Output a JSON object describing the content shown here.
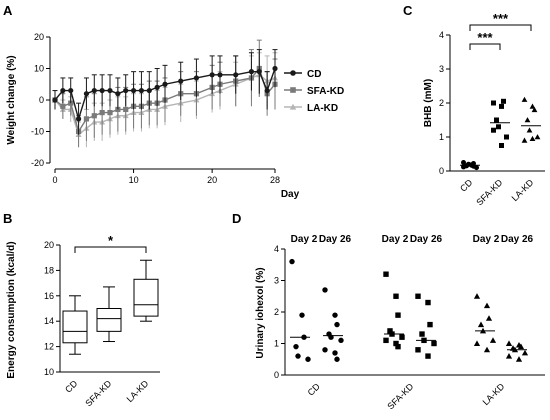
{
  "chart_data": [
    {
      "panel": "A",
      "type": "line",
      "xlabel": "Day",
      "ylabel": "Weight change (%)",
      "xlim": [
        0,
        28
      ],
      "ylim": [
        -20,
        20
      ],
      "x_ticks": [
        0,
        10,
        20,
        28
      ],
      "y_ticks": [
        -20,
        -10,
        0,
        10,
        20
      ],
      "legend_position": "right",
      "series": [
        {
          "name": "CD",
          "color": "#1a1a1a",
          "marker": "circle",
          "x": [
            0,
            1,
            2,
            3,
            4,
            5,
            6,
            7,
            8,
            9,
            10,
            11,
            12,
            13,
            14,
            16,
            18,
            20,
            21,
            23,
            25,
            26,
            27,
            28
          ],
          "y": [
            0,
            3,
            3,
            -6,
            2,
            3,
            3,
            3,
            2,
            3,
            3,
            3,
            3,
            4,
            5,
            6,
            7,
            8,
            8,
            8,
            9,
            9,
            3,
            10
          ],
          "err": [
            3,
            4,
            4,
            5,
            5,
            5,
            5,
            5,
            5,
            5,
            6,
            6,
            6,
            6,
            6,
            6,
            6,
            6,
            6,
            6,
            6,
            7,
            6,
            6
          ]
        },
        {
          "name": "SFA-KD",
          "color": "#7a7a7a",
          "marker": "square",
          "x": [
            0,
            1,
            2,
            3,
            4,
            5,
            6,
            7,
            8,
            9,
            10,
            11,
            12,
            13,
            14,
            16,
            18,
            20,
            21,
            23,
            25,
            26,
            27,
            28
          ],
          "y": [
            0,
            -2,
            -1,
            -10,
            -6,
            -5,
            -4,
            -4,
            -3,
            -3,
            -2,
            -2,
            -1,
            -1,
            0,
            2,
            2,
            4,
            5,
            6,
            7,
            10,
            2,
            5
          ],
          "err": [
            3,
            4,
            4,
            5,
            7,
            7,
            7,
            7,
            7,
            7,
            7,
            7,
            7,
            7,
            7,
            7,
            7,
            7,
            7,
            8,
            9,
            9,
            7,
            8
          ]
        },
        {
          "name": "LA-KD",
          "color": "#b5b5b5",
          "marker": "triangle",
          "x": [
            0,
            1,
            2,
            3,
            4,
            5,
            6,
            7,
            8,
            9,
            10,
            11,
            12,
            13,
            14,
            16,
            18,
            20,
            21,
            23,
            25,
            26,
            27,
            28
          ],
          "y": [
            0,
            -3,
            -3,
            -11,
            -9,
            -7,
            -7,
            -6,
            -5,
            -5,
            -4,
            -4,
            -3,
            -3,
            -2,
            -1,
            0,
            2,
            3,
            5,
            7,
            8,
            6,
            7
          ],
          "err": [
            3,
            3,
            4,
            4,
            6,
            6,
            6,
            6,
            6,
            6,
            6,
            6,
            6,
            6,
            6,
            6,
            6,
            6,
            6,
            7,
            7,
            7,
            8,
            8
          ]
        }
      ]
    },
    {
      "panel": "B",
      "type": "box",
      "ylabel": "Energy consumption (kcal/d)",
      "ylim": [
        10,
        20
      ],
      "y_ticks": [
        10,
        12,
        14,
        16,
        18,
        20
      ],
      "categories": [
        "CD",
        "SFA-KD",
        "LA-KD"
      ],
      "boxes": [
        {
          "min": 11.4,
          "q1": 12.3,
          "median": 13.2,
          "q3": 14.8,
          "max": 16.0
        },
        {
          "min": 12.4,
          "q1": 13.2,
          "median": 14.2,
          "q3": 15.0,
          "max": 16.7
        },
        {
          "min": 14.0,
          "q1": 14.4,
          "median": 15.3,
          "q3": 17.3,
          "max": 18.8
        }
      ],
      "significance": [
        {
          "from": 0,
          "to": 2,
          "label": "*"
        }
      ]
    },
    {
      "panel": "C",
      "type": "scatter",
      "ylabel": "BHB (mM)",
      "ylim": [
        0,
        4
      ],
      "y_ticks": [
        0,
        1,
        2,
        3,
        4
      ],
      "categories": [
        "CD",
        "SFA-KD",
        "LA-KD"
      ],
      "groups": [
        {
          "marker": "circle",
          "points": [
            0.12,
            0.18,
            0.22,
            0.15,
            0.2,
            0.1,
            0.25,
            0.17,
            0.14
          ],
          "mean": 0.17
        },
        {
          "marker": "square",
          "points": [
            2.0,
            1.9,
            2.05,
            1.5,
            1.3,
            1.0,
            1.2,
            0.75
          ],
          "mean": 1.42
        },
        {
          "marker": "triangle",
          "points": [
            2.1,
            1.9,
            1.8,
            1.5,
            1.2,
            1.0,
            0.9,
            0.95
          ],
          "mean": 1.33
        }
      ],
      "significance": [
        {
          "from": 0,
          "to": 1,
          "label": "***"
        },
        {
          "from": 0,
          "to": 2,
          "label": "***"
        }
      ]
    },
    {
      "panel": "D",
      "type": "scatter",
      "ylabel": "Urinary iohexol (%)",
      "ylim": [
        0,
        4
      ],
      "y_ticks": [
        0,
        1,
        2,
        3,
        4
      ],
      "categories": [
        "CD",
        "SFA-KD",
        "LA-KD"
      ],
      "subgroup_labels": [
        "Day 2",
        "Day 26"
      ],
      "groups": [
        {
          "marker": "circle",
          "subgroups": [
            {
              "points": [
                3.6,
                1.9,
                1.2,
                0.9,
                0.6,
                0.5
              ],
              "mean": 1.2
            },
            {
              "points": [
                2.7,
                1.9,
                1.6,
                1.3,
                1.2,
                1.1,
                0.8,
                0.7,
                0.5
              ],
              "mean": 1.25
            }
          ]
        },
        {
          "marker": "square",
          "subgroups": [
            {
              "points": [
                3.2,
                2.5,
                1.9,
                1.4,
                1.3,
                1.2,
                1.1,
                1.0,
                0.9
              ],
              "mean": 1.3
            },
            {
              "points": [
                2.5,
                2.3,
                1.6,
                1.3,
                1.1,
                1.0,
                0.8,
                0.6
              ],
              "mean": 1.1
            }
          ]
        },
        {
          "marker": "triangle",
          "subgroups": [
            {
              "points": [
                2.5,
                2.2,
                1.8,
                1.6,
                1.4,
                1.1,
                1.0,
                0.8
              ],
              "mean": 1.4
            },
            {
              "points": [
                1.0,
                0.95,
                0.9,
                0.85,
                0.8,
                0.7,
                0.6,
                0.5
              ],
              "mean": 0.8
            }
          ]
        }
      ]
    }
  ],
  "labels": {
    "panel_a": "A",
    "panel_b": "B",
    "panel_c": "C",
    "panel_d": "D",
    "a_xlabel": "Day",
    "a_ylabel": "Weight change (%)",
    "b_ylabel": "Energy consumption (kcal/d)",
    "c_ylabel": "BHB (mM)",
    "d_ylabel": "Urinary iohexol (%)",
    "d_day2": "Day 2",
    "d_day26": "Day 26"
  }
}
